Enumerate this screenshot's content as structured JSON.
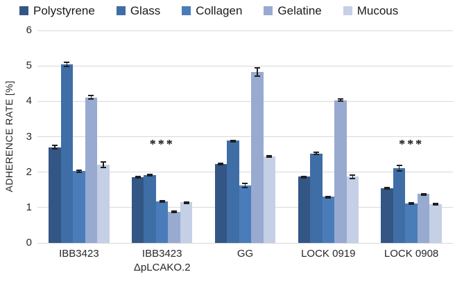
{
  "chart_data": {
    "type": "bar",
    "title": "",
    "xlabel": "",
    "ylabel": "ADHERENCE RATE [%]",
    "ylim": [
      0,
      6
    ],
    "ytick_step": 1,
    "grid": true,
    "legend_position": "top",
    "categories": [
      "IBB3423",
      "IBB3423\nΔpLCAKO.2",
      "GG",
      "LOCK 0919",
      "LOCK 0908"
    ],
    "series": [
      {
        "name": "Polystyrene",
        "color": "#335685",
        "values": [
          2.7,
          1.86,
          2.22,
          1.87,
          1.55
        ],
        "errors": [
          0.07,
          0.03,
          0.04,
          0.03,
          0.04
        ]
      },
      {
        "name": "Glass",
        "color": "#3E6EA5",
        "values": [
          5.04,
          1.92,
          2.89,
          2.53,
          2.11
        ],
        "errors": [
          0.08,
          0.03,
          0.03,
          0.05,
          0.09
        ]
      },
      {
        "name": "Collagen",
        "color": "#4A7CBA",
        "values": [
          2.03,
          1.17,
          1.62,
          1.3,
          1.12
        ],
        "errors": [
          0.05,
          0.04,
          0.08,
          0.03,
          0.03
        ]
      },
      {
        "name": "Gelatine",
        "color": "#98AAD0",
        "values": [
          4.11,
          0.88,
          4.83,
          4.03,
          1.38
        ],
        "errors": [
          0.07,
          0.04,
          0.13,
          0.05,
          0.03
        ]
      },
      {
        "name": "Mucous",
        "color": "#C5CFE5",
        "values": [
          2.21,
          1.15,
          2.45,
          1.87,
          1.1
        ],
        "errors": [
          0.09,
          0.03,
          0.04,
          0.07,
          0.03
        ]
      }
    ],
    "annotations": [
      {
        "text": "***",
        "category_index": 1,
        "y": 2.62
      },
      {
        "text": "***",
        "category_index": 4,
        "y": 2.62
      }
    ]
  }
}
